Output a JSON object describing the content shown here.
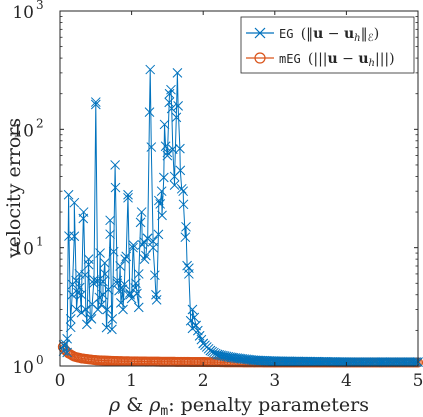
{
  "chart_data": {
    "type": "line",
    "title": "",
    "xlabel": "ρ & ρm: penalty parameters",
    "xlabel_parts": {
      "rho": "ρ",
      "amp": " & ",
      "rho2": "ρ",
      "sub": "m",
      "rest": ": penalty parameters"
    },
    "ylabel": "velocity errors",
    "xlim": [
      0,
      5
    ],
    "ylim": [
      1,
      1000
    ],
    "yscale": "log",
    "xticks": [
      {
        "value": 0,
        "label": "0"
      },
      {
        "value": 1,
        "label": "1"
      },
      {
        "value": 2,
        "label": "2"
      },
      {
        "value": 3,
        "label": "3"
      },
      {
        "value": 4,
        "label": "4"
      },
      {
        "value": 5,
        "label": "5"
      }
    ],
    "yticks": [
      {
        "value": 1,
        "base": "10",
        "exp": "0"
      },
      {
        "value": 10,
        "base": "10",
        "exp": "1"
      },
      {
        "value": 100,
        "base": "10",
        "exp": "2"
      },
      {
        "value": 1000,
        "base": "10",
        "exp": "3"
      }
    ],
    "grid": false,
    "legend_position": "top-right",
    "series": [
      {
        "name": "EG (‖u − uh‖ℰ)",
        "legend": {
          "prefix": "EG ",
          "open": "(‖",
          "u": "u",
          "minus": " − ",
          "uh": "u",
          "h": "h",
          "close": "‖",
          "sub": "ℰ",
          "end": ")"
        },
        "color": "#0072BD",
        "marker": "x",
        "anchors": [
          [
            0.05,
            1.5
          ],
          [
            0.1,
            1.7
          ],
          [
            0.12,
            28
          ],
          [
            0.15,
            2.5
          ],
          [
            0.17,
            4
          ],
          [
            0.2,
            24
          ],
          [
            0.23,
            3
          ],
          [
            0.27,
            6
          ],
          [
            0.3,
            4
          ],
          [
            0.33,
            20
          ],
          [
            0.36,
            3
          ],
          [
            0.4,
            8
          ],
          [
            0.44,
            2.5
          ],
          [
            0.47,
            5
          ],
          [
            0.5,
            170
          ],
          [
            0.53,
            3
          ],
          [
            0.56,
            9
          ],
          [
            0.6,
            4
          ],
          [
            0.63,
            6
          ],
          [
            0.66,
            3
          ],
          [
            0.7,
            13
          ],
          [
            0.73,
            2.5
          ],
          [
            0.77,
            50
          ],
          [
            0.8,
            5
          ],
          [
            0.84,
            7
          ],
          [
            0.88,
            3
          ],
          [
            0.91,
            8
          ],
          [
            0.95,
            28
          ],
          [
            0.98,
            4
          ],
          [
            1.02,
            10
          ],
          [
            1.06,
            5
          ],
          [
            1.1,
            6
          ],
          [
            1.14,
            20
          ],
          [
            1.18,
            8
          ],
          [
            1.22,
            12
          ],
          [
            1.26,
            320
          ],
          [
            1.3,
            10
          ],
          [
            1.34,
            4
          ],
          [
            1.38,
            25
          ],
          [
            1.42,
            30
          ],
          [
            1.46,
            110
          ],
          [
            1.5,
            60
          ],
          [
            1.53,
            200
          ],
          [
            1.56,
            150
          ],
          [
            1.6,
            40
          ],
          [
            1.64,
            300
          ],
          [
            1.68,
            45
          ],
          [
            1.72,
            30
          ],
          [
            1.76,
            15
          ],
          [
            1.8,
            6
          ],
          [
            1.85,
            3
          ],
          [
            1.9,
            2.2
          ],
          [
            1.95,
            1.8
          ],
          [
            2.0,
            1.55
          ],
          [
            2.1,
            1.35
          ],
          [
            2.2,
            1.25
          ],
          [
            2.4,
            1.18
          ],
          [
            2.7,
            1.12
          ],
          [
            3.0,
            1.1
          ],
          [
            3.5,
            1.09
          ],
          [
            4.0,
            1.08
          ],
          [
            4.5,
            1.08
          ],
          [
            5.0,
            1.08
          ]
        ]
      },
      {
        "name": "mEG (|||u − uh|||)",
        "legend": {
          "prefix": "mEG ",
          "open": "(|||",
          "u": "u",
          "minus": " − ",
          "uh": "u",
          "h": "h",
          "close": "|||",
          "end": ")"
        },
        "color": "#D95319",
        "marker": "o",
        "anchors": [
          [
            0.04,
            1.45
          ],
          [
            0.08,
            1.35
          ],
          [
            0.12,
            1.28
          ],
          [
            0.2,
            1.2
          ],
          [
            0.3,
            1.16
          ],
          [
            0.5,
            1.12
          ],
          [
            0.8,
            1.1
          ],
          [
            1.2,
            1.09
          ],
          [
            2.0,
            1.08
          ],
          [
            3.0,
            1.07
          ],
          [
            4.0,
            1.07
          ],
          [
            5.0,
            1.07
          ]
        ]
      }
    ]
  }
}
